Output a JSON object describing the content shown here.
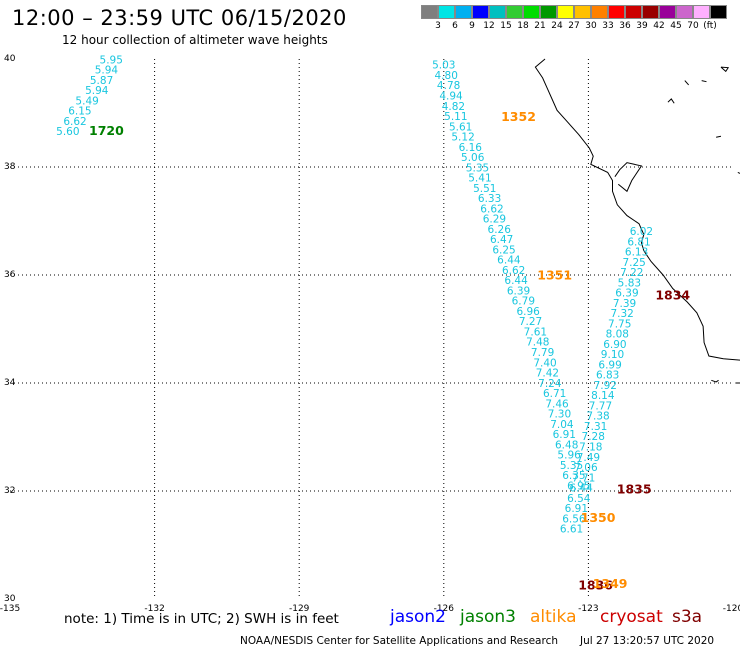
{
  "header": {
    "title": "12:00 – 23:59 UTC 06/15/2020",
    "subtitle": "12 hour collection of altimeter wave heights"
  },
  "colorbar": {
    "colors": [
      "#7f7f7f",
      "#00e5e5",
      "#00b0f0",
      "#0000ff",
      "#00c0c0",
      "#33cc33",
      "#00dd00",
      "#009900",
      "#ffff00",
      "#ffc000",
      "#ff8000",
      "#ff0000",
      "#cc0000",
      "#990000",
      "#990099",
      "#cc66cc",
      "#ffb0ff",
      "#000000"
    ],
    "labels": [
      "3",
      "6",
      "9",
      "12",
      "15",
      "18",
      "21",
      "24",
      "27",
      "30",
      "33",
      "36",
      "39",
      "42",
      "45",
      "70",
      "(ft)"
    ]
  },
  "axes": {
    "lon_ticks": [
      "-135",
      "-132",
      "-129",
      "-126",
      "-123",
      "-120"
    ],
    "lat_ticks": [
      "40",
      "38",
      "36",
      "34",
      "32",
      "30"
    ],
    "lon_range": [
      -135,
      -120
    ],
    "lat_range": [
      30,
      40
    ]
  },
  "tracks": [
    {
      "id": "pass-1720",
      "color": "#19c6df",
      "points": [
        [
          "5.95",
          -132.9,
          39.92
        ],
        [
          "5.94",
          -133.0,
          39.73
        ],
        [
          "5.87",
          -133.1,
          39.54
        ],
        [
          "5.94",
          -133.2,
          39.35
        ],
        [
          "5.49",
          -133.4,
          39.16
        ],
        [
          "6.15",
          -133.55,
          38.97
        ],
        [
          "6.62",
          -133.65,
          38.78
        ],
        [
          "5.60",
          -133.8,
          38.59
        ]
      ]
    },
    {
      "id": "pass-1352-1351-1350",
      "color": "#19c6df",
      "points": [
        [
          "5.03",
          -126.0,
          39.82
        ],
        [
          "4.80",
          -125.95,
          39.63
        ],
        [
          "4.78",
          -125.9,
          39.44
        ],
        [
          "4.94",
          -125.85,
          39.25
        ],
        [
          "4.82",
          -125.8,
          39.06
        ],
        [
          "5.11",
          -125.75,
          38.87
        ],
        [
          "5.61",
          -125.65,
          38.68
        ],
        [
          "5.12",
          -125.6,
          38.49
        ],
        [
          "6.16",
          -125.45,
          38.3
        ],
        [
          "5.06",
          -125.4,
          38.11
        ],
        [
          "5.35",
          -125.3,
          37.92
        ],
        [
          "5.41",
          -125.25,
          37.73
        ],
        [
          "5.51",
          -125.15,
          37.54
        ],
        [
          "6.33",
          -125.05,
          37.35
        ],
        [
          "6.62",
          -125.0,
          37.16
        ],
        [
          "6.29",
          -124.95,
          36.97
        ],
        [
          "6.26",
          -124.85,
          36.78
        ],
        [
          "6.47",
          -124.8,
          36.59
        ],
        [
          "6.25",
          -124.75,
          36.4
        ],
        [
          "6.44",
          -124.65,
          36.21
        ],
        [
          "6.62",
          -124.55,
          36.02
        ],
        [
          "6.44",
          -124.5,
          35.83
        ],
        [
          "6.39",
          -124.45,
          35.64
        ],
        [
          "6.79",
          -124.35,
          35.45
        ],
        [
          "6.96",
          -124.25,
          35.26
        ],
        [
          "7.27",
          -124.2,
          35.07
        ],
        [
          "7.61",
          -124.1,
          34.88
        ],
        [
          "7.48",
          -124.05,
          34.69
        ],
        [
          "7.79",
          -123.95,
          34.5
        ],
        [
          "7.40",
          -123.9,
          34.31
        ],
        [
          "7.42",
          -123.85,
          34.12
        ],
        [
          "7.24",
          -123.8,
          33.93
        ],
        [
          "6.71",
          -123.7,
          33.74
        ],
        [
          "7.46",
          -123.65,
          33.55
        ],
        [
          "7.30",
          -123.6,
          33.36
        ],
        [
          "7.04",
          -123.55,
          33.17
        ],
        [
          "6.91",
          -123.5,
          32.98
        ],
        [
          "6.48",
          -123.45,
          32.79
        ],
        [
          "5.96",
          -123.4,
          32.6
        ],
        [
          "5.35",
          -123.35,
          32.41
        ],
        [
          "6.35",
          -123.3,
          32.22
        ],
        [
          "6.95",
          -123.2,
          32.03
        ]
      ]
    },
    {
      "id": "pass-1834-1835-1836",
      "color": "#19c6df",
      "points": [
        [
          "6.02",
          -121.9,
          36.74
        ],
        [
          "6.81",
          -121.95,
          36.55
        ],
        [
          "6.13",
          -122.0,
          36.36
        ],
        [
          "7.25",
          -122.05,
          36.17
        ],
        [
          "7.22",
          -122.1,
          35.98
        ],
        [
          "5.83",
          -122.15,
          35.79
        ],
        [
          "6.39",
          -122.2,
          35.6
        ],
        [
          "7.39",
          -122.25,
          35.41
        ],
        [
          "7.32",
          -122.3,
          35.22
        ],
        [
          "7.75",
          -122.35,
          35.03
        ],
        [
          "8.08",
          -122.4,
          34.84
        ],
        [
          "6.90",
          -122.45,
          34.65
        ],
        [
          "9.10",
          -122.5,
          34.46
        ],
        [
          "6.99",
          -122.55,
          34.27
        ],
        [
          "6.83",
          -122.6,
          34.08
        ],
        [
          "7.92",
          -122.65,
          33.89
        ],
        [
          "8.14",
          -122.7,
          33.7
        ],
        [
          "7.77",
          -122.75,
          33.51
        ],
        [
          "7.38",
          -122.8,
          33.32
        ],
        [
          "7.31",
          -122.85,
          33.13
        ],
        [
          "7.28",
          -122.9,
          32.94
        ],
        [
          "7.18",
          -122.95,
          32.75
        ],
        [
          "7.49",
          -123.0,
          32.56
        ],
        [
          "7.06",
          -123.05,
          32.37
        ],
        [
          "7.71",
          -123.1,
          32.18
        ],
        [
          "6.44",
          -123.15,
          31.99
        ],
        [
          "6.54",
          -123.2,
          31.8
        ],
        [
          "6.91",
          -123.25,
          31.61
        ],
        [
          "6.56",
          -123.3,
          31.42
        ],
        [
          "6.61",
          -123.35,
          31.23
        ]
      ]
    }
  ],
  "pass_labels": [
    {
      "text": "1720",
      "color": "#008000",
      "lon": -133.0,
      "lat": 38.59
    },
    {
      "text": "1352",
      "color": "#ff8c00",
      "lon": -124.45,
      "lat": 38.85
    },
    {
      "text": "1351",
      "color": "#ff8c00",
      "lon": -123.7,
      "lat": 35.92
    },
    {
      "text": "1350",
      "color": "#ff8c00",
      "lon": -122.8,
      "lat": 31.43
    },
    {
      "text": "1834",
      "color": "#800000",
      "lon": -121.25,
      "lat": 35.55
    },
    {
      "text": "1835",
      "color": "#800000",
      "lon": -122.05,
      "lat": 31.95
    },
    {
      "text": "1836",
      "color": "#800000",
      "lon": -122.85,
      "lat": 30.18
    },
    {
      "text": "1349",
      "color": "#ff8c00",
      "lon": -122.55,
      "lat": 30.2
    }
  ],
  "footer": {
    "note": "note: 1) Time is in UTC; 2) SWH is in feet",
    "satellites": [
      {
        "name": "jason2",
        "color": "#0000ff"
      },
      {
        "name": "jason3",
        "color": "#008000"
      },
      {
        "name": "altika",
        "color": "#ff8c00"
      },
      {
        "name": "cryosat",
        "color": "#cc0000"
      },
      {
        "name": "s3a",
        "color": "#800000"
      }
    ],
    "credit": "NOAA/NESDIS Center for Satellite Applications and Research",
    "timestamp": "Jul 27 13:20:57 UTC 2020"
  }
}
